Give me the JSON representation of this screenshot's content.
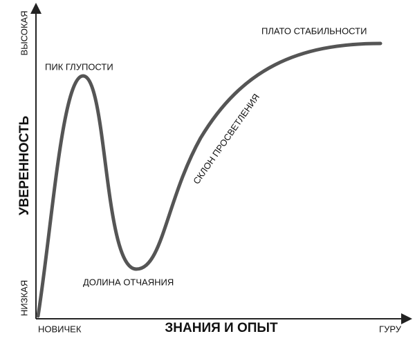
{
  "axes": {
    "y_label": "УВЕРЕННОСТЬ",
    "y_high": "ВЫСОКАЯ",
    "y_low": "НИЗКАЯ",
    "x_label": "ЗНАНИЯ И ОПЫТ",
    "x_start": "НОВИЧЕК",
    "x_end": "ГУРУ"
  },
  "annotations": {
    "peak": "ПИК ГЛУПОСТИ",
    "valley": "ДОЛИНА ОТЧАЯНИЯ",
    "slope": "СКЛОН ПРОСВЕТЛЕНИЯ",
    "plateau": "ПЛАТО СТАБИЛЬНОСТИ"
  }
}
